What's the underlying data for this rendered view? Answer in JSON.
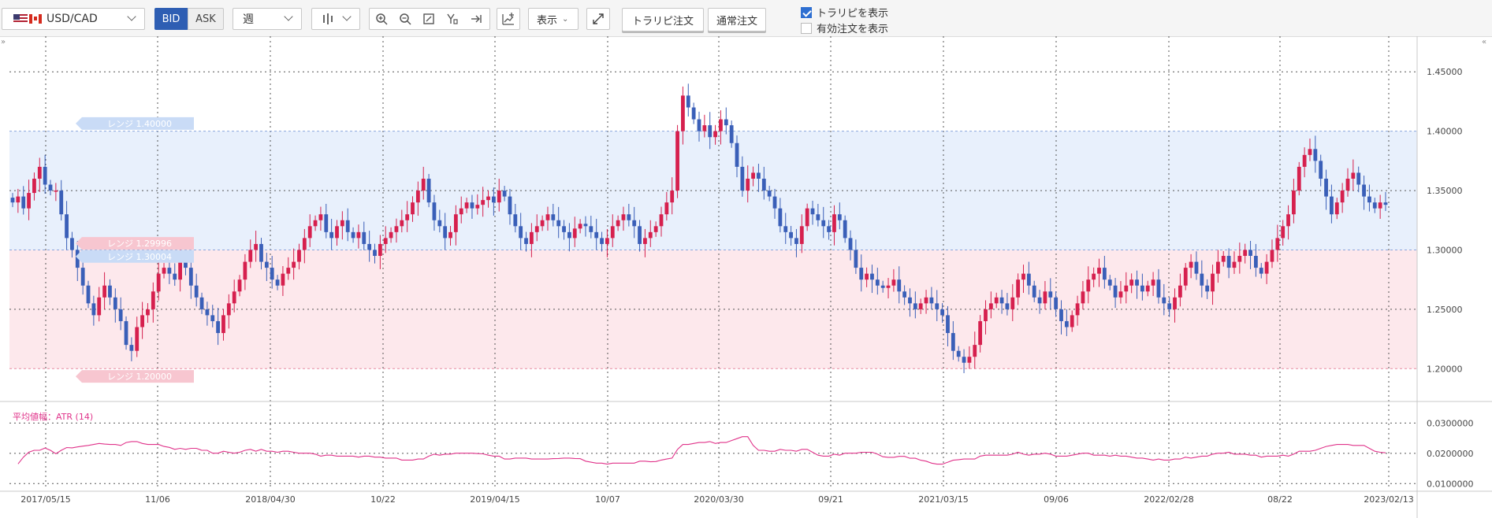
{
  "toolbar": {
    "pair": "USD/CAD",
    "bid_label": "BID",
    "ask_label": "ASK",
    "period": "週",
    "display_label": "表示",
    "traripi_order": "トラリピ注文",
    "normal_order": "通常注文",
    "show_traripi": "トラリピを表示",
    "show_traripi_checked": true,
    "show_active_orders": "有効注文を表示",
    "show_active_orders_checked": false
  },
  "chart_data": [
    {
      "type": "candlestick",
      "title": "USD/CAD",
      "timeframe": "週",
      "y_ticks": [
        "1.45000",
        "1.40000",
        "1.35000",
        "1.30000",
        "1.25000",
        "1.20000"
      ],
      "ylim": [
        1.175,
        1.48
      ],
      "x_ticks": [
        "2017/05/15",
        "11/06",
        "2018/04/30",
        "10/22",
        "2019/04/15",
        "10/07",
        "2020/03/30",
        "09/21",
        "2021/03/15",
        "09/06",
        "2022/02/28",
        "08/22",
        "2023/02/13"
      ],
      "up_color": "#d6204e",
      "down_color": "#3a5fb8",
      "range_bands": [
        {
          "label": "レンジ 1.40000",
          "from": 1.3,
          "to": 1.4,
          "color": "#e8f0fc"
        },
        {
          "label": "レンジ 1.29996",
          "from": 1.2,
          "to": 1.3,
          "color": "#fde8ec"
        },
        {
          "label": "レンジ 1.30004",
          "from": 1.3,
          "to": 1.3,
          "color": "#dde6f8"
        },
        {
          "label": "レンジ 1.20000",
          "from": 1.2,
          "to": 1.2,
          "color": "#fde8ec"
        }
      ],
      "close_series": [
        1.34,
        1.345,
        1.335,
        1.348,
        1.36,
        1.37,
        1.355,
        1.35,
        1.35,
        1.33,
        1.31,
        1.3,
        1.285,
        1.27,
        1.255,
        1.245,
        1.26,
        1.27,
        1.26,
        1.25,
        1.24,
        1.22,
        1.215,
        1.235,
        1.245,
        1.25,
        1.265,
        1.28,
        1.285,
        1.28,
        1.275,
        1.29,
        1.285,
        1.27,
        1.26,
        1.25,
        1.245,
        1.24,
        1.23,
        1.245,
        1.255,
        1.265,
        1.275,
        1.29,
        1.3,
        1.305,
        1.29,
        1.285,
        1.275,
        1.27,
        1.28,
        1.285,
        1.29,
        1.3,
        1.31,
        1.32,
        1.325,
        1.33,
        1.315,
        1.31,
        1.32,
        1.325,
        1.315,
        1.31,
        1.315,
        1.305,
        1.3,
        1.295,
        1.305,
        1.31,
        1.315,
        1.32,
        1.325,
        1.33,
        1.34,
        1.35,
        1.36,
        1.34,
        1.325,
        1.32,
        1.31,
        1.315,
        1.33,
        1.335,
        1.34,
        1.335,
        1.338,
        1.342,
        1.345,
        1.34,
        1.35,
        1.345,
        1.33,
        1.32,
        1.31,
        1.305,
        1.315,
        1.32,
        1.325,
        1.33,
        1.325,
        1.32,
        1.315,
        1.31,
        1.318,
        1.322,
        1.32,
        1.315,
        1.31,
        1.305,
        1.31,
        1.32,
        1.325,
        1.33,
        1.325,
        1.32,
        1.305,
        1.31,
        1.315,
        1.32,
        1.33,
        1.34,
        1.35,
        1.4,
        1.43,
        1.42,
        1.41,
        1.4,
        1.405,
        1.395,
        1.4,
        1.41,
        1.405,
        1.39,
        1.37,
        1.35,
        1.36,
        1.365,
        1.36,
        1.35,
        1.345,
        1.335,
        1.32,
        1.315,
        1.31,
        1.305,
        1.32,
        1.335,
        1.33,
        1.325,
        1.32,
        1.315,
        1.33,
        1.325,
        1.31,
        1.3,
        1.285,
        1.275,
        1.28,
        1.275,
        1.27,
        1.268,
        1.27,
        1.275,
        1.265,
        1.26,
        1.255,
        1.25,
        1.255,
        1.26,
        1.255,
        1.25,
        1.245,
        1.23,
        1.215,
        1.21,
        1.205,
        1.21,
        1.22,
        1.24,
        1.25,
        1.255,
        1.26,
        1.255,
        1.25,
        1.26,
        1.275,
        1.28,
        1.27,
        1.26,
        1.255,
        1.265,
        1.26,
        1.25,
        1.24,
        1.235,
        1.245,
        1.255,
        1.265,
        1.275,
        1.28,
        1.285,
        1.275,
        1.27,
        1.26,
        1.265,
        1.27,
        1.275,
        1.27,
        1.265,
        1.27,
        1.275,
        1.26,
        1.255,
        1.25,
        1.26,
        1.27,
        1.285,
        1.29,
        1.28,
        1.27,
        1.265,
        1.28,
        1.29,
        1.295,
        1.285,
        1.29,
        1.295,
        1.3,
        1.295,
        1.285,
        1.28,
        1.29,
        1.3,
        1.31,
        1.32,
        1.33,
        1.35,
        1.37,
        1.38,
        1.385,
        1.375,
        1.36,
        1.345,
        1.33,
        1.34,
        1.35,
        1.36,
        1.365,
        1.355,
        1.345,
        1.34,
        1.335,
        1.34,
        1.338
      ],
      "subcharts": [
        {
          "type": "line",
          "label": "平均値幅：ATR (14)",
          "color": "#e0338a",
          "y_ticks": [
            "0.0300000",
            "0.0200000",
            "0.0100000"
          ],
          "ylim": [
            0.008,
            0.034
          ]
        }
      ]
    }
  ]
}
